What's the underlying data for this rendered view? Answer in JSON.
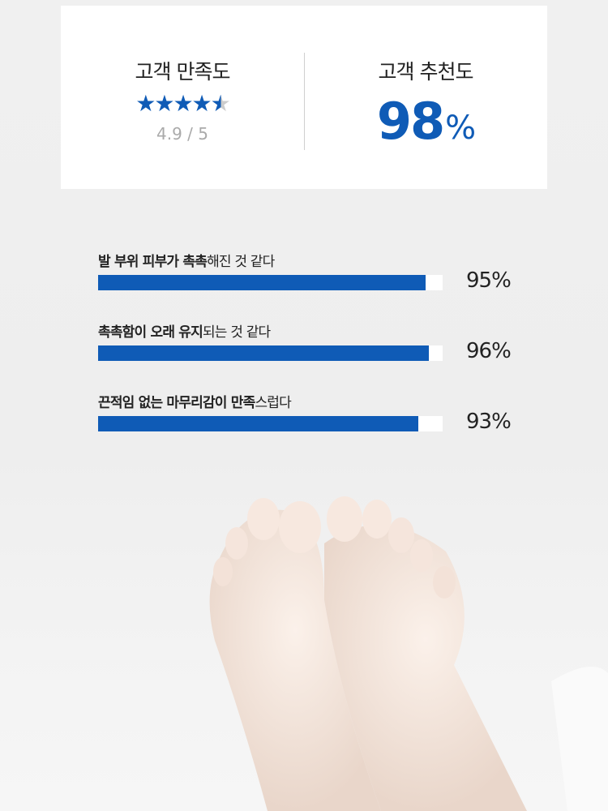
{
  "summary": {
    "satisfaction": {
      "title": "고객 만족도",
      "rating": 4.9,
      "max": 5,
      "score_text": "4.9 / 5"
    },
    "recommendation": {
      "title": "고객 추천도",
      "value": "98",
      "unit": "%"
    }
  },
  "survey": [
    {
      "bold": "발 부위 피부가 촉촉",
      "regular": "해진 것 같다",
      "percent": 95,
      "value_text": "95%"
    },
    {
      "bold": "촉촉함이 오래 유지",
      "regular": "되는 것 같다",
      "percent": 96,
      "value_text": "96%"
    },
    {
      "bold": "끈적임 없는 마무리감이 만족",
      "regular": "스럽다",
      "percent": 93,
      "value_text": "93%"
    }
  ],
  "colors": {
    "accent": "#0f5bb6",
    "track": "#ffffff",
    "star_empty": "#cccccc"
  },
  "image": {
    "subject": "bare feet soles photo"
  }
}
